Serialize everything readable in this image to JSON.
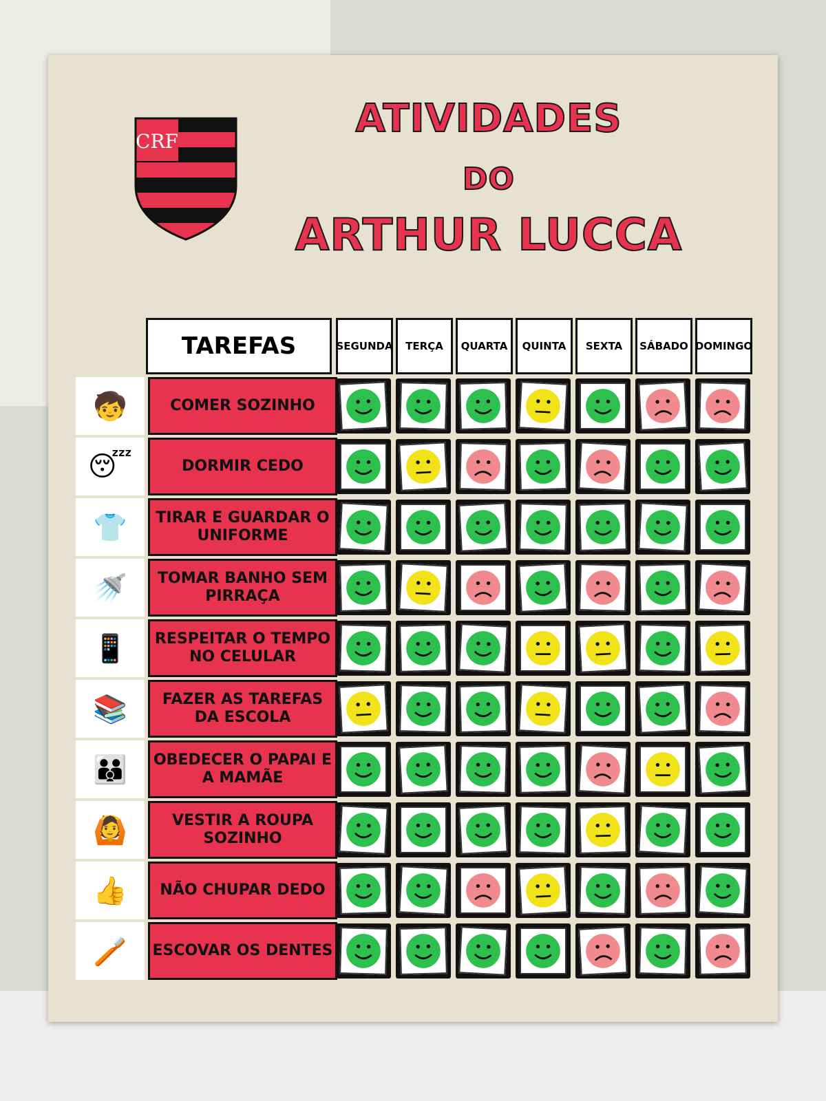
{
  "title": {
    "line1": "ATIVIDADES",
    "line2": "DO",
    "line3": "ARTHUR LUCCA"
  },
  "crest": {
    "lettering": "CRF",
    "colors": [
      "#e8334f",
      "#111111"
    ]
  },
  "header": {
    "tasks": "TAREFAS",
    "days": [
      "SEGUNDA",
      "TERÇA",
      "QUARTA",
      "QUINTA",
      "SEXTA",
      "SÁBADO",
      "DOMINGO"
    ]
  },
  "colors": {
    "green": "#2ec04f",
    "yellow": "#f2e21a",
    "red": "#f08a8f",
    "task_bg": "#e8334f"
  },
  "rows": [
    {
      "task": "COMER SOZINHO",
      "icon": "child-eating",
      "faces": [
        "happy",
        "happy",
        "happy",
        "neutral",
        "happy",
        "sad",
        "sad"
      ]
    },
    {
      "task": "DORMIR CEDO",
      "icon": "child-sleeping",
      "faces": [
        "happy",
        "neutral",
        "sad",
        "happy",
        "sad",
        "happy",
        "happy"
      ]
    },
    {
      "task": "TIRAR E GUARDAR O UNIFORME",
      "icon": "child-wardrobe",
      "faces": [
        "happy",
        "happy",
        "happy",
        "happy",
        "happy",
        "happy",
        "happy"
      ]
    },
    {
      "task": "TOMAR BANHO SEM PIRRAÇA",
      "icon": "child-shower",
      "faces": [
        "happy",
        "neutral",
        "sad",
        "happy",
        "sad",
        "happy",
        "sad"
      ]
    },
    {
      "task": "RESPEITAR O TEMPO NO CELULAR",
      "icon": "child-phone",
      "faces": [
        "happy",
        "happy",
        "happy",
        "neutral",
        "neutral",
        "happy",
        "neutral"
      ]
    },
    {
      "task": "FAZER AS TAREFAS DA ESCOLA",
      "icon": "child-homework",
      "faces": [
        "neutral",
        "happy",
        "happy",
        "neutral",
        "happy",
        "happy",
        "sad"
      ]
    },
    {
      "task": "OBEDECER O PAPAI E A MAMÃE",
      "icon": "family-hug",
      "faces": [
        "happy",
        "happy",
        "happy",
        "happy",
        "sad",
        "neutral",
        "happy"
      ]
    },
    {
      "task": "VESTIR A ROUPA SOZINHO",
      "icon": "child-dressing",
      "faces": [
        "happy",
        "happy",
        "happy",
        "happy",
        "neutral",
        "happy",
        "happy"
      ]
    },
    {
      "task": "NÃO CHUPAR DEDO",
      "icon": "thumbs-up",
      "faces": [
        "happy",
        "happy",
        "sad",
        "neutral",
        "happy",
        "sad",
        "happy"
      ]
    },
    {
      "task": "ESCOVAR OS DENTES",
      "icon": "child-brushing",
      "faces": [
        "happy",
        "happy",
        "happy",
        "happy",
        "sad",
        "happy",
        "sad"
      ]
    }
  ]
}
